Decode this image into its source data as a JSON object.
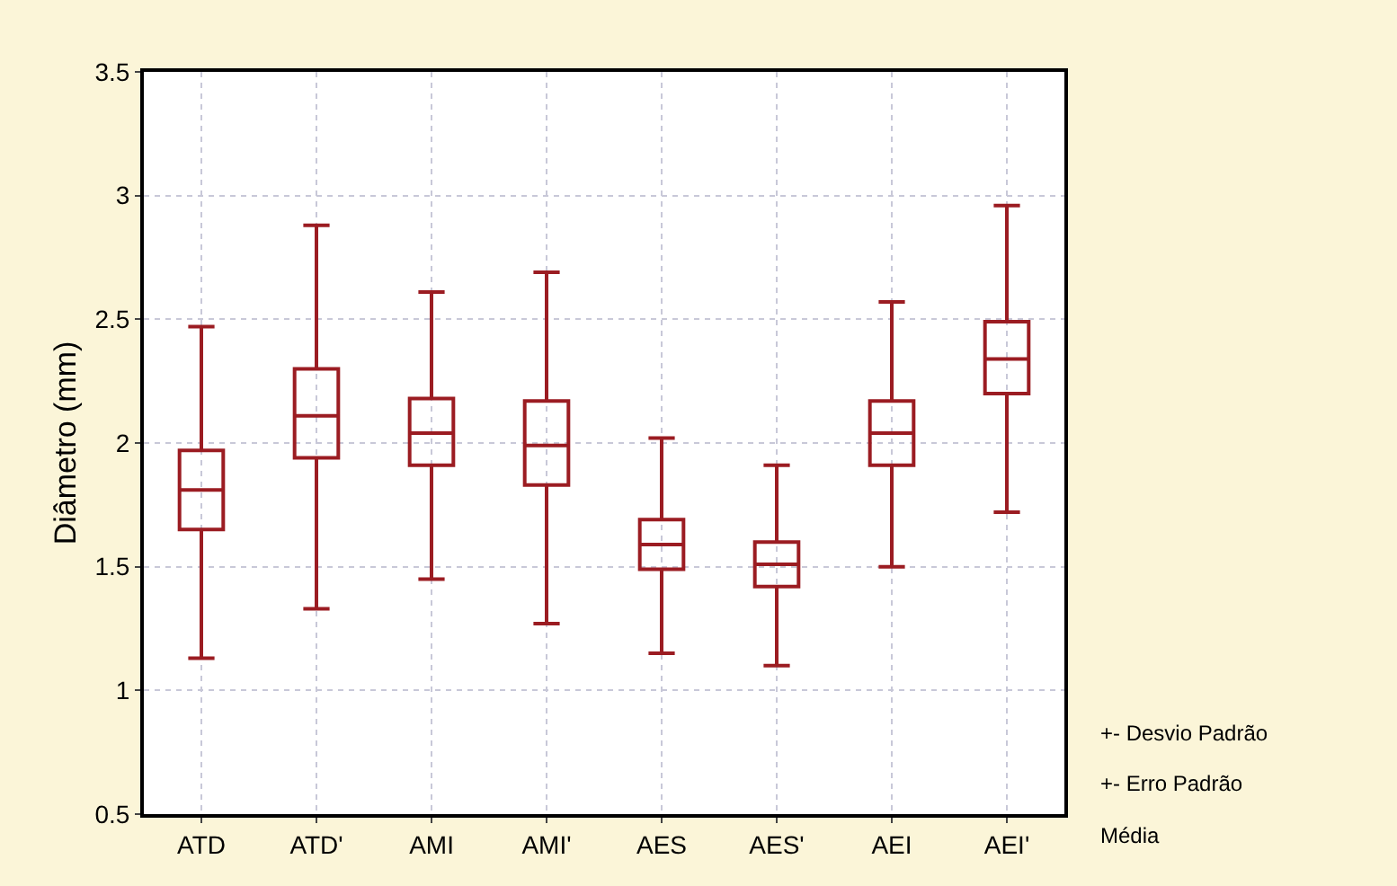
{
  "chart_data": {
    "type": "box",
    "ylabel": "Diâmetro (mm)",
    "categories": [
      "ATD",
      "ATD'",
      "AMI",
      "AMI'",
      "AES",
      "AES'",
      "AEI",
      "AEI'"
    ],
    "series": [
      {
        "color": "#9b1c22",
        "boxes": [
          {
            "low": 1.13,
            "q1": 1.65,
            "median": 1.81,
            "q3": 1.97,
            "high": 2.47
          },
          {
            "low": 1.33,
            "q1": 1.94,
            "median": 2.11,
            "q3": 2.3,
            "high": 2.88
          },
          {
            "low": 1.45,
            "q1": 1.91,
            "median": 2.04,
            "q3": 2.18,
            "high": 2.61
          },
          {
            "low": 1.27,
            "q1": 1.83,
            "median": 1.99,
            "q3": 2.17,
            "high": 2.69
          },
          {
            "low": 1.15,
            "q1": 1.49,
            "median": 1.59,
            "q3": 1.69,
            "high": 2.02
          },
          {
            "low": 1.1,
            "q1": 1.42,
            "median": 1.51,
            "q3": 1.6,
            "high": 1.91
          },
          {
            "low": 1.5,
            "q1": 1.91,
            "median": 2.04,
            "q3": 2.17,
            "high": 2.57
          },
          {
            "low": 1.72,
            "q1": 2.2,
            "median": 2.34,
            "q3": 2.49,
            "high": 2.96
          }
        ]
      }
    ],
    "ylim": [
      0.5,
      3.5
    ],
    "yticks": [
      0.5,
      1,
      1.5,
      2,
      2.5,
      3,
      3.5
    ],
    "grid": true,
    "annotations": [
      "+- Desvio Padrão",
      "+- Erro Padrão",
      "Média"
    ]
  }
}
